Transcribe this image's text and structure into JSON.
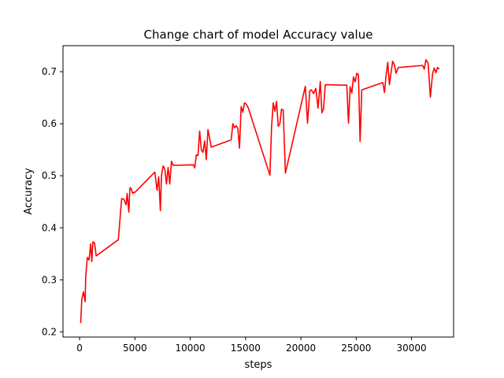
{
  "chart_data": {
    "type": "line",
    "title": "Change chart of model Accuracy value",
    "xlabel": "steps",
    "ylabel": "Accuracy",
    "xlim": [
      -1500,
      33800
    ],
    "ylim": [
      0.19,
      0.75
    ],
    "xticks": [
      0,
      5000,
      10000,
      15000,
      20000,
      25000,
      30000
    ],
    "xtick_labels": [
      "0",
      "5000",
      "10000",
      "15000",
      "20000",
      "25000",
      "30000"
    ],
    "yticks": [
      0.2,
      0.3,
      0.4,
      0.5,
      0.6,
      0.7
    ],
    "ytick_labels": [
      "0.2",
      "0.3",
      "0.4",
      "0.5",
      "0.6",
      "0.7"
    ],
    "grid": false,
    "series": [
      {
        "color": "#ff0000",
        "x": [
          100,
          200,
          350,
          500,
          550,
          700,
          850,
          1000,
          1100,
          1200,
          1350,
          1500,
          3500,
          3800,
          4000,
          4200,
          4300,
          4450,
          4550,
          4650,
          4800,
          4900,
          5000,
          6800,
          7000,
          7150,
          7300,
          7400,
          7550,
          7700,
          7850,
          8000,
          8150,
          8300,
          8450,
          10300,
          10400,
          10550,
          10700,
          10850,
          11000,
          11150,
          11300,
          11450,
          11600,
          11750,
          11900,
          13700,
          13850,
          14000,
          14150,
          14300,
          14450,
          14600,
          14750,
          14900,
          15050,
          15250,
          17200,
          17350,
          17500,
          17650,
          17800,
          17950,
          18100,
          18250,
          18400,
          18600,
          20400,
          20600,
          20800,
          20950,
          21150,
          21350,
          21550,
          21750,
          21900,
          22050,
          22200,
          24150,
          24300,
          24450,
          24600,
          24750,
          24900,
          25050,
          25200,
          25350,
          25500,
          27400,
          27550,
          27700,
          27850,
          28000,
          28150,
          28300,
          28450,
          28600,
          28800,
          31000,
          31150,
          31300,
          31500,
          31700,
          31900,
          32050,
          32200,
          32350,
          32500
        ],
        "y": [
          0.217,
          0.263,
          0.277,
          0.258,
          0.305,
          0.343,
          0.338,
          0.369,
          0.335,
          0.373,
          0.371,
          0.346,
          0.377,
          0.456,
          0.455,
          0.444,
          0.466,
          0.43,
          0.477,
          0.476,
          0.466,
          0.468,
          0.468,
          0.507,
          0.472,
          0.498,
          0.433,
          0.5,
          0.519,
          0.513,
          0.484,
          0.516,
          0.484,
          0.528,
          0.52,
          0.521,
          0.515,
          0.54,
          0.539,
          0.586,
          0.55,
          0.545,
          0.567,
          0.531,
          0.589,
          0.572,
          0.555,
          0.569,
          0.6,
          0.592,
          0.596,
          0.591,
          0.553,
          0.633,
          0.622,
          0.64,
          0.638,
          0.63,
          0.501,
          0.594,
          0.64,
          0.624,
          0.643,
          0.595,
          0.6,
          0.628,
          0.626,
          0.505,
          0.672,
          0.601,
          0.663,
          0.665,
          0.658,
          0.668,
          0.63,
          0.681,
          0.621,
          0.629,
          0.675,
          0.674,
          0.601,
          0.671,
          0.659,
          0.69,
          0.68,
          0.697,
          0.694,
          0.566,
          0.665,
          0.679,
          0.66,
          0.693,
          0.718,
          0.675,
          0.699,
          0.72,
          0.713,
          0.697,
          0.708,
          0.712,
          0.705,
          0.723,
          0.716,
          0.651,
          0.696,
          0.707,
          0.698,
          0.708,
          0.705
        ]
      }
    ]
  }
}
